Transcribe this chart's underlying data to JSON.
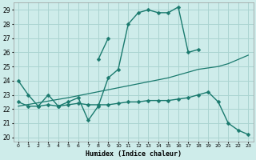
{
  "xlabel": "Humidex (Indice chaleur)",
  "bg_color": "#ceecea",
  "grid_color": "#aad4d1",
  "line_color": "#1a7a6e",
  "xlim": [
    -0.5,
    23.5
  ],
  "ylim": [
    19.7,
    29.5
  ],
  "xticks": [
    0,
    1,
    2,
    3,
    4,
    5,
    6,
    7,
    8,
    9,
    10,
    11,
    12,
    13,
    14,
    15,
    16,
    17,
    18,
    19,
    20,
    21,
    22,
    23
  ],
  "yticks": [
    20,
    21,
    22,
    23,
    24,
    25,
    26,
    27,
    28,
    29
  ],
  "series": [
    {
      "x": [
        0,
        1,
        2,
        3,
        4,
        5,
        6,
        7,
        8,
        9,
        10,
        11,
        12,
        13,
        14,
        15,
        16,
        17,
        18
      ],
      "y": [
        24,
        23,
        22.2,
        23,
        22.2,
        22.5,
        22.8,
        21.2,
        22.2,
        24.2,
        24.8,
        28.0,
        28.8,
        29.0,
        28.8,
        28.8,
        29.2,
        26.0,
        26.2
      ],
      "marker": "D",
      "markersize": 2.5,
      "linewidth": 1.0
    },
    {
      "x": [
        8,
        9
      ],
      "y": [
        25.5,
        27.0
      ],
      "marker": "D",
      "markersize": 2.5,
      "linewidth": 1.0
    },
    {
      "x": [
        0,
        5,
        10,
        15,
        18,
        20,
        21,
        22,
        23
      ],
      "y": [
        22.2,
        22.8,
        23.5,
        24.2,
        24.8,
        25.0,
        25.2,
        25.5,
        25.8
      ],
      "marker": null,
      "markersize": 0,
      "linewidth": 0.9
    },
    {
      "x": [
        0,
        1,
        2,
        3,
        4,
        5,
        6,
        7,
        8,
        9,
        10,
        11,
        12,
        13,
        14,
        15,
        16,
        17,
        18,
        19,
        20,
        21,
        22,
        23
      ],
      "y": [
        22.5,
        22.2,
        22.2,
        22.3,
        22.2,
        22.3,
        22.4,
        22.3,
        22.3,
        22.3,
        22.4,
        22.5,
        22.5,
        22.6,
        22.6,
        22.6,
        22.7,
        22.8,
        23.0,
        23.2,
        22.5,
        21.0,
        20.5,
        20.2
      ],
      "marker": "D",
      "markersize": 2.5,
      "linewidth": 1.0
    }
  ]
}
